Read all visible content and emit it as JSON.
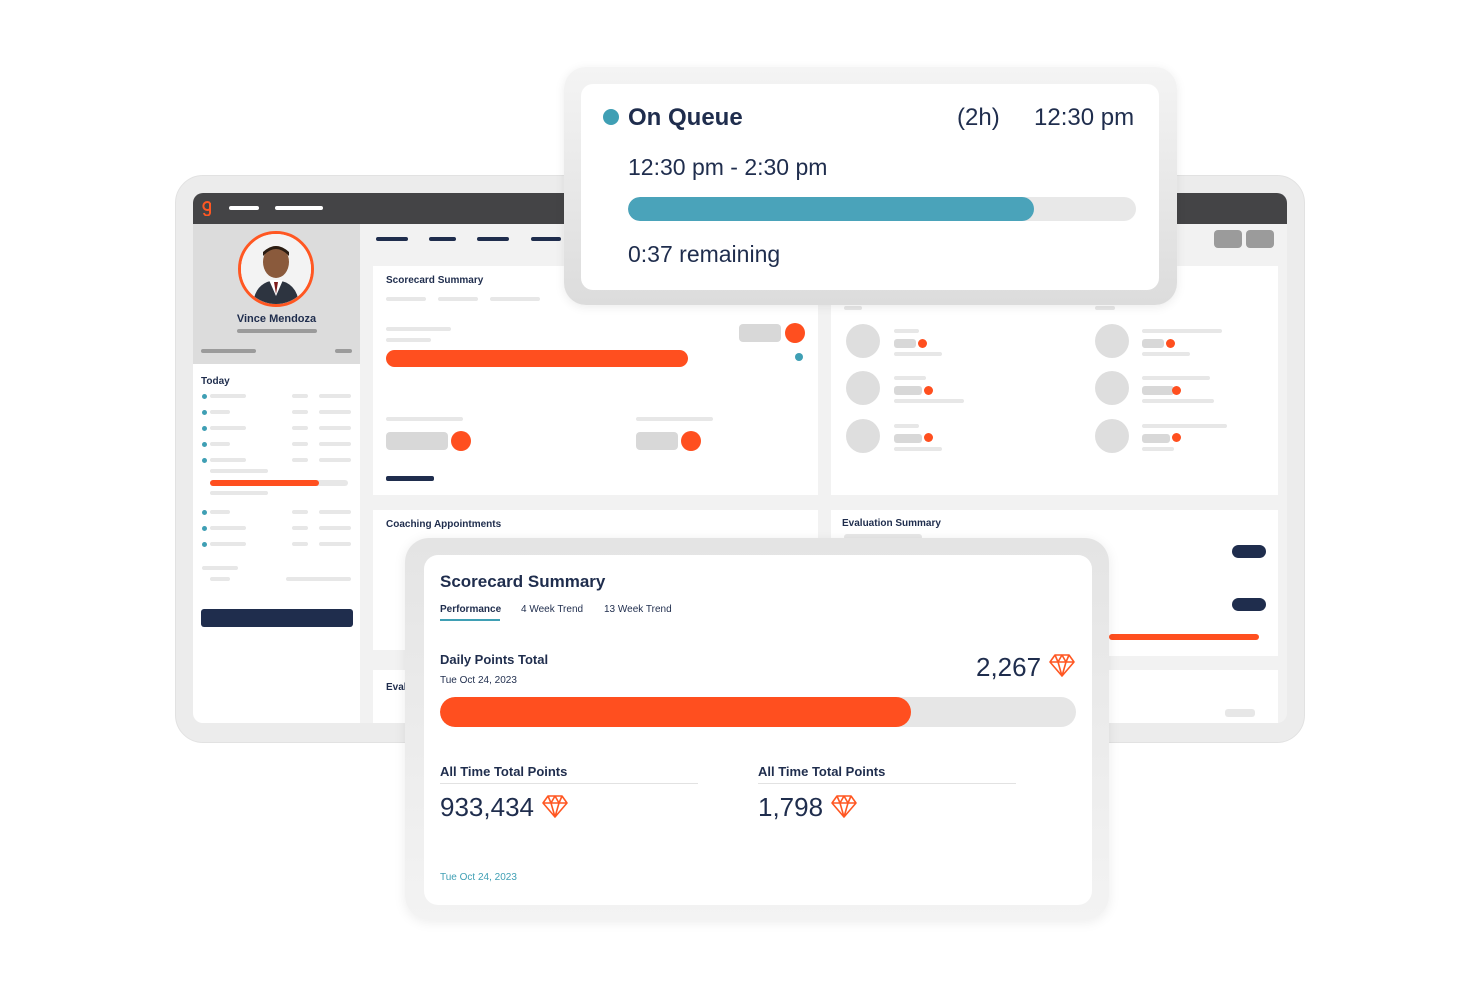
{
  "dashboard": {
    "agent_name": "Vince Mendoza",
    "today_label": "Today",
    "panels": {
      "scorecard_title": "Scorecard Summary",
      "coaching_title": "Coaching Appointments",
      "evaluation_title": "Evaluation Summary",
      "eval_partial": "Eval"
    }
  },
  "queue": {
    "status": "On Queue",
    "duration": "(2h)",
    "time": "12:30 pm",
    "range": "12:30 pm - 2:30 pm",
    "remaining": "0:37 remaining",
    "progress_fraction": 0.8
  },
  "scorecard": {
    "title": "Scorecard Summary",
    "tabs": [
      {
        "label": "Performance",
        "active": true
      },
      {
        "label": "4 Week Trend",
        "active": false
      },
      {
        "label": "13 Week Trend",
        "active": false
      }
    ],
    "daily": {
      "label": "Daily Points Total",
      "date": "Tue Oct 24, 2023",
      "value": "2,267",
      "progress_fraction": 0.74
    },
    "all_time": [
      {
        "label": "All Time Total Points",
        "value": "933,434"
      },
      {
        "label": "All Time Total Points",
        "value": "1,798"
      }
    ],
    "footer_date": "Tue Oct 24, 2023"
  },
  "colors": {
    "accent_orange": "#ff4f1f",
    "accent_teal": "#3f9fb4",
    "navy": "#1f2d4d"
  },
  "icons": [
    "diamond-icon",
    "brand-logo-icon"
  ]
}
